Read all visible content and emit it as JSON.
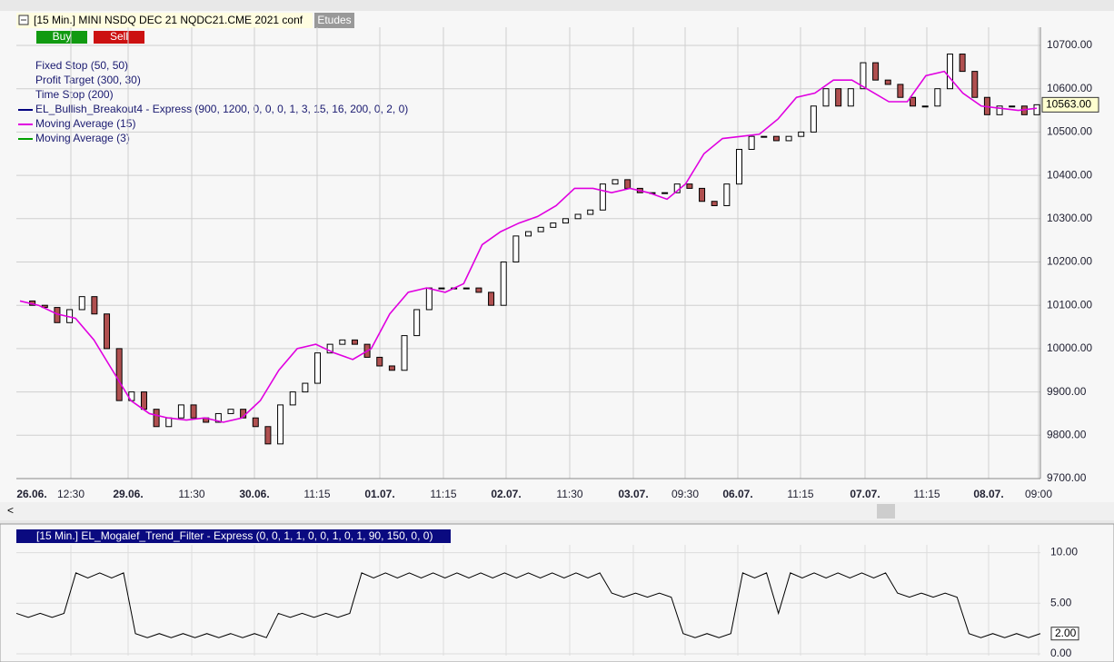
{
  "header": {
    "instrument": "[15 Min.] MINI NSDQ DEC 21  NQDC21.CME 2021 conf",
    "etudes": "Etudes",
    "buy": "Buy",
    "sell": "Sell"
  },
  "legend": [
    "Fixed Stop  (50, 50)",
    "Profit Target  (300, 30)",
    "Time Stop  (200)",
    "EL_Bullish_Breakout4 - Express  (900, 1200, 0, 0, 0, 1, 3, 15, 16, 200, 0, 2, 0)",
    "Moving Average  (15)",
    "Moving Average  (3)"
  ],
  "legend_colors": [
    null,
    null,
    null,
    "#000080",
    "#e000e0",
    "#00a000"
  ],
  "chart_data": {
    "type": "candlestick",
    "ylim": [
      9700,
      10700
    ],
    "yticks": [
      {
        "value": 9700,
        "label": "9700.00"
      },
      {
        "value": 9800,
        "label": "9800.00"
      },
      {
        "value": 9900,
        "label": "9900.00"
      },
      {
        "value": 10000,
        "label": "10000.00"
      },
      {
        "value": 10100,
        "label": "10100.00"
      },
      {
        "value": 10200,
        "label": "10200.00"
      },
      {
        "value": 10300,
        "label": "10300.00"
      },
      {
        "value": 10400,
        "label": "10400.00"
      },
      {
        "value": 10500,
        "label": "10500.00"
      },
      {
        "value": 10600,
        "label": "10600.00"
      },
      {
        "value": 10700,
        "label": "10700.00"
      }
    ],
    "categories": [
      "26.06.",
      "12:30",
      "29.06.",
      "11:30",
      "30.06.",
      "11:15",
      "01.07.",
      "11:15",
      "02.07.",
      "11:30",
      "03.07.",
      "09:30",
      "06.07.",
      "11:15",
      "07.07.",
      "11:15",
      "08.07.",
      "09:00"
    ],
    "close": [
      10110,
      10100,
      10095,
      10060,
      10090,
      10120,
      10080,
      10000,
      9880,
      9900,
      9860,
      9820,
      9840,
      9870,
      9840,
      9830,
      9850,
      9860,
      9840,
      9820,
      9780,
      9870,
      9900,
      9920,
      9990,
      10010,
      10020,
      10010,
      9980,
      9960,
      9950,
      10030,
      10090,
      10140,
      10140,
      10140,
      10140,
      10130,
      10100,
      10200,
      10260,
      10270,
      10280,
      10290,
      10300,
      10310,
      10320,
      10380,
      10390,
      10370,
      10360,
      10360,
      10360,
      10380,
      10370,
      10340,
      10330,
      10380,
      10460,
      10490,
      10490,
      10480,
      10490,
      10500,
      10560,
      10600,
      10560,
      10600,
      10660,
      10620,
      10610,
      10580,
      10560,
      10560,
      10600,
      10680,
      10640,
      10580,
      10540,
      10560,
      10560,
      10540,
      10563
    ],
    "ma15": [
      10110,
      10100,
      10080,
      10070,
      10020,
      9950,
      9880,
      9850,
      9840,
      9835,
      9840,
      9830,
      9840,
      9880,
      9950,
      10000,
      10010,
      9990,
      9975,
      10000,
      10080,
      10130,
      10140,
      10130,
      10150,
      10240,
      10270,
      10290,
      10305,
      10330,
      10370,
      10370,
      10360,
      10370,
      10360,
      10345,
      10380,
      10450,
      10485,
      10490,
      10495,
      10530,
      10580,
      10590,
      10620,
      10620,
      10595,
      10570,
      10570,
      10630,
      10640,
      10590,
      10560,
      10555,
      10550,
      10555
    ],
    "last_label": "10563.00"
  },
  "indicator": {
    "title": "[15 Min.] EL_Mogalef_Trend_Filter - Express  (0, 0, 1, 1, 0, 0, 1, 0, 1, 90, 150, 0, 0)",
    "ylim": [
      0,
      10.5
    ],
    "yticks": [
      {
        "value": 0,
        "label": "0.00"
      },
      {
        "value": 5,
        "label": "5.00"
      },
      {
        "value": 10,
        "label": "10.00"
      }
    ],
    "values": [
      4,
      3.6,
      4,
      3.6,
      4,
      8,
      7.5,
      8,
      7.5,
      8,
      2,
      1.6,
      2,
      1.6,
      2,
      1.6,
      2,
      1.6,
      2,
      1.6,
      2,
      1.6,
      4,
      3.6,
      4,
      3.6,
      4,
      3.6,
      4,
      8,
      7.5,
      8,
      7.5,
      8,
      7.5,
      8,
      7.5,
      8,
      7.5,
      8,
      7.5,
      8,
      7.5,
      8,
      7.5,
      8,
      7.5,
      8,
      7.5,
      8,
      6,
      5.6,
      6,
      5.6,
      6,
      5.6,
      2,
      1.6,
      2,
      1.6,
      2,
      8,
      7.5,
      8,
      4,
      8,
      7.5,
      8,
      7.5,
      8,
      7.5,
      8,
      7.5,
      8,
      6,
      5.6,
      6,
      5.6,
      6,
      5.6,
      2,
      1.6,
      2,
      1.6,
      2,
      1.6,
      2
    ],
    "last_label": "2.00"
  }
}
